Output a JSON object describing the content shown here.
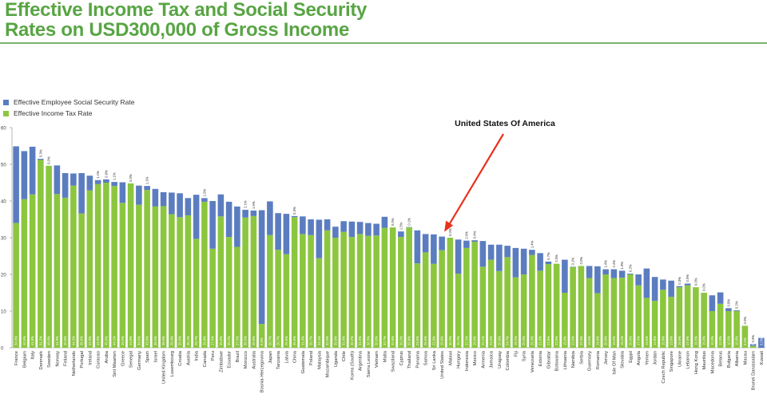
{
  "title_line1": "Effective Income Tax and Social Security",
  "title_line2": "Rates on USD300,000 of Gross Income",
  "colors": {
    "title": "#58a544",
    "social_security": "#5b7dc0",
    "income_tax": "#8cc63f",
    "arrow": "#e8321e"
  },
  "chart_data": {
    "type": "bar",
    "stacked": true,
    "ylim": [
      0,
      60
    ],
    "yticks": [
      0,
      10,
      20,
      30,
      40,
      50,
      60
    ],
    "legend": [
      "Effective Employee Social Security Rate",
      "Effective Income Tax Rate"
    ],
    "annotation": "United States Of America",
    "categories": [
      "France",
      "Belgium",
      "Italy",
      "Denmark",
      "Sweden",
      "Norway",
      "Finland",
      "Netherlands",
      "Portugal",
      "Ireland",
      "Curacao",
      "Aruba",
      "Sint Maarten",
      "Greece",
      "Senegal",
      "Germany",
      "Spain",
      "Israel",
      "United Kingdom",
      "Luxembourg",
      "Croatia",
      "Austria",
      "India",
      "Canada",
      "Peru",
      "Zimbabwe",
      "Ecuador",
      "Brazil",
      "Morocco",
      "Australia",
      "Bosnia-Herzegovina",
      "Japan",
      "Tanzania",
      "Latvia",
      "China",
      "Guatemala",
      "Poland",
      "Malaysia",
      "Mozambique",
      "Uganda",
      "Chile",
      "Korea (South)",
      "Argentina",
      "Sierra Leone",
      "Vietnam",
      "Malta",
      "Swaziland",
      "Cyprus",
      "Thailand",
      "Panama",
      "Samoa",
      "Sri Lanka",
      "United States",
      "Malawi",
      "Hungary",
      "Indonesia",
      "Mexico",
      "Armenia",
      "Jamaica",
      "Uruguay",
      "Colombia",
      "Fiji",
      "Syria",
      "Venezuela",
      "Estonia",
      "Gibraltar",
      "Botswana",
      "Lithuania",
      "Namibia",
      "Serbia",
      "Guernsey",
      "Romania",
      "Jersey",
      "Isle Of Man",
      "Slovakia",
      "Egypt",
      "Angola",
      "Yemen",
      "Jordan",
      "Czech Republic",
      "Singapore",
      "Ukraine",
      "Lebanon",
      "Hong Kong",
      "Mauritius",
      "Macedonia",
      "Belarus",
      "Bulgaria",
      "Albania",
      "Macau",
      "Brunei Darussalam",
      "Kuwait"
    ],
    "series": [
      {
        "name": "Effective Employee Social Security Rate",
        "values": [
          20.9,
          13.1,
          13.0,
          0.3,
          0.0,
          7.8,
          6.7,
          3.3,
          11.0,
          4.0,
          1.1,
          0.9,
          1.1,
          5.6,
          0.0,
          5.2,
          1.1,
          4.8,
          3.8,
          5.9,
          6.5,
          4.7,
          12.0,
          1.0,
          13.0,
          6.0,
          9.6,
          11.0,
          2.1,
          1.5,
          31.0,
          9.2,
          10.0,
          11.0,
          0.3,
          4.8,
          4.3,
          10.5,
          3.0,
          3.0,
          2.9,
          4.2,
          3.3,
          3.5,
          3.2,
          3.0,
          0.0,
          1.5,
          0.1,
          9.0,
          5.0,
          8.0,
          3.7,
          0.0,
          9.3,
          2.0,
          0.4,
          7.0,
          4.1,
          7.2,
          3.1,
          8.0,
          7.0,
          1.4,
          4.8,
          0.7,
          0.0,
          9.0,
          0.1,
          0.0,
          3.3,
          7.3,
          1.4,
          2.4,
          1.9,
          0.2,
          3.0,
          8.0,
          6.5,
          2.8,
          4.4,
          0.3,
          0.5,
          0.0,
          0.0,
          4.3,
          3.1,
          0.8,
          0.2,
          0.0,
          0.5,
          2.7
        ]
      },
      {
        "name": "Effective Income Tax Rate",
        "values": [
          34.0,
          40.5,
          41.8,
          51.2,
          49.6,
          41.9,
          40.9,
          44.2,
          36.6,
          42.9,
          44.6,
          45.0,
          44.1,
          39.5,
          44.8,
          39.0,
          43.0,
          38.5,
          38.6,
          36.4,
          35.6,
          36.1,
          29.7,
          39.8,
          27.0,
          35.8,
          30.2,
          27.5,
          35.5,
          35.9,
          6.5,
          30.7,
          26.7,
          25.5,
          35.6,
          31.0,
          30.7,
          24.4,
          32.0,
          30.0,
          31.6,
          30.2,
          31.0,
          30.5,
          30.6,
          32.7,
          32.8,
          30.2,
          32.8,
          23.0,
          26.0,
          22.9,
          26.6,
          30.0,
          20.2,
          27.2,
          28.9,
          22.1,
          24.0,
          20.9,
          24.7,
          19.2,
          20.0,
          25.3,
          21.0,
          22.8,
          22.9,
          15.0,
          22.0,
          22.3,
          19.0,
          14.9,
          20.0,
          19.0,
          19.1,
          20.0,
          17.0,
          13.6,
          12.8,
          15.8,
          13.9,
          16.5,
          17.0,
          16.5,
          15.0,
          10.0,
          12.0,
          10.0,
          10.0,
          6.0,
          0.5,
          0.0
        ]
      }
    ]
  }
}
